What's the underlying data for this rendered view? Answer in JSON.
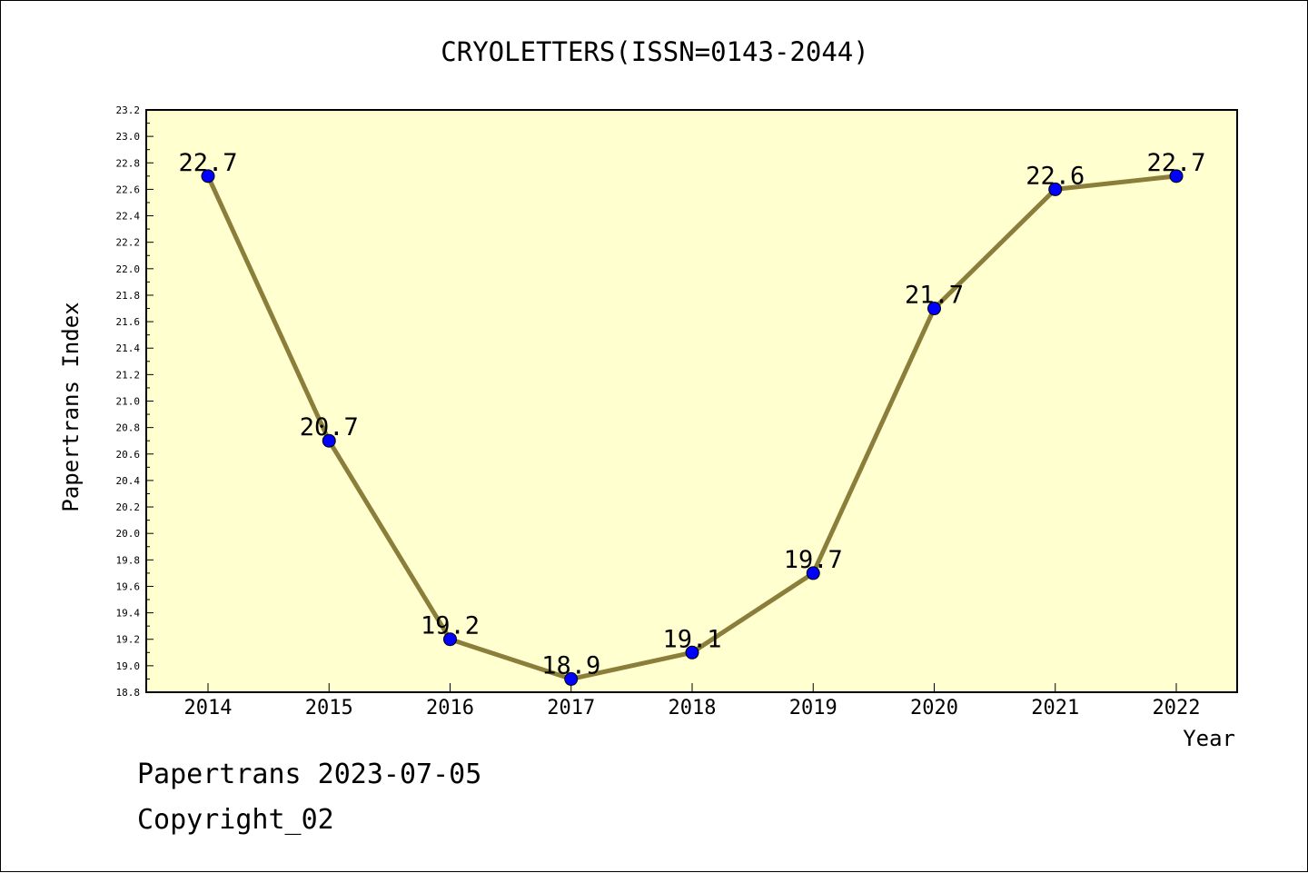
{
  "chart_data": {
    "type": "line",
    "title": "CRYOLETTERS(ISSN=0143-2044)",
    "xlabel": "Year",
    "ylabel": "Papertrans Index",
    "categories": [
      "2014",
      "2015",
      "2016",
      "2017",
      "2018",
      "2019",
      "2020",
      "2021",
      "2022"
    ],
    "series": [
      {
        "values": [
          22.7,
          20.7,
          19.2,
          18.9,
          19.1,
          19.7,
          21.7,
          22.6,
          22.7
        ],
        "data_labels": [
          "22.7",
          "20.7",
          "19.2",
          "18.9",
          "19.1",
          "19.7",
          "21.7",
          "22.6",
          "22.7"
        ]
      }
    ],
    "ylim": [
      18.8,
      23.2
    ],
    "yticks": [
      "18.8",
      "19.0",
      "19.2",
      "19.4",
      "19.6",
      "19.8",
      "20.0",
      "20.2",
      "20.4",
      "20.6",
      "20.8",
      "21.0",
      "21.2",
      "21.4",
      "21.6",
      "21.8",
      "22.0",
      "22.2",
      "22.4",
      "22.6",
      "22.8",
      "23.0",
      "23.2"
    ],
    "grid": false,
    "colors": {
      "plot_background": "#ffffd0",
      "line": "#8b7d3a",
      "marker": "#0000ff"
    }
  },
  "footer": {
    "date_line": "Papertrans 2023-07-05",
    "copyright": "Copyright_02"
  }
}
